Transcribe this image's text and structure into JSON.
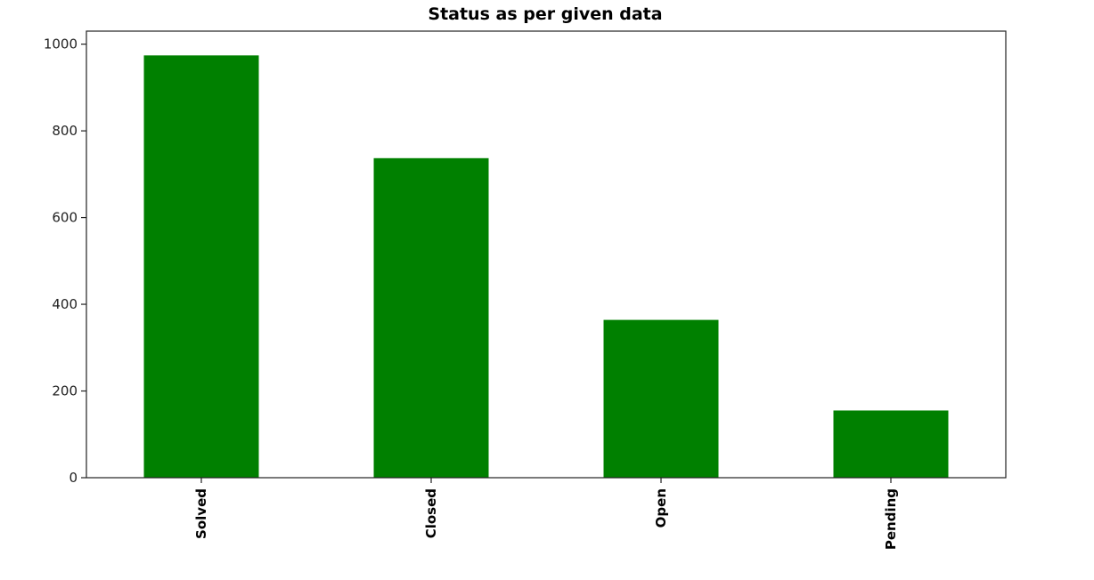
{
  "chart_data": {
    "type": "bar",
    "title": "Status as per given data",
    "xlabel": "",
    "ylabel": "",
    "categories": [
      "Solved",
      "Closed",
      "Open",
      "Pending"
    ],
    "values": [
      974,
      737,
      364,
      155
    ],
    "ylim": [
      0,
      1030
    ],
    "yticks": [
      0,
      200,
      400,
      600,
      800,
      1000
    ],
    "bar_color": "#008000",
    "grid": false,
    "legend": false,
    "xtick_rotation": "vertical"
  }
}
